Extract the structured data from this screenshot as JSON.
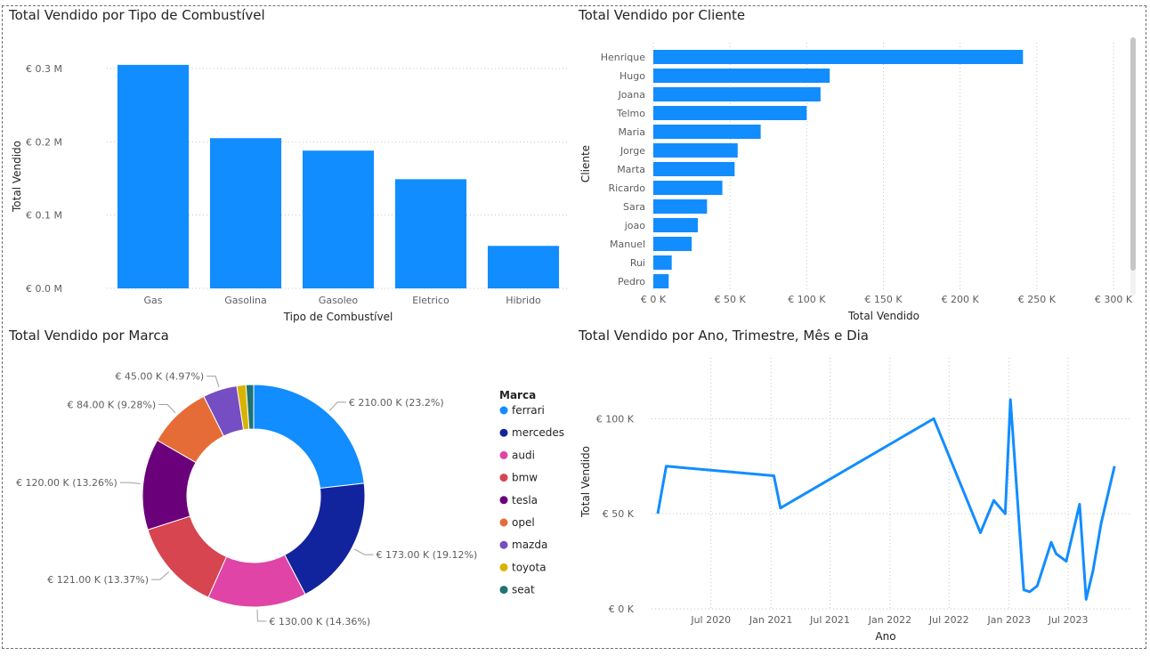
{
  "chart_data": [
    {
      "type": "bar",
      "title": "Total Vendido por Tipo de Combustível",
      "xlabel": "Tipo de Combustível",
      "ylabel": "Total Vendido",
      "categories": [
        "Gas",
        "Gasolina",
        "Gasoleo",
        "Eletrico",
        "Hibrido"
      ],
      "values": [
        305000,
        205000,
        188000,
        149000,
        58000
      ],
      "ylim": [
        0,
        300000
      ],
      "yticks": [
        0,
        100000,
        200000,
        300000
      ],
      "ytick_labels": [
        "€ 0.0 M",
        "€ 0.1 M",
        "€ 0.2 M",
        "€ 0.3 M"
      ],
      "grid": true,
      "color": "#118DFF"
    },
    {
      "type": "bar",
      "orientation": "horizontal",
      "title": "Total Vendido por Cliente",
      "xlabel": "Total Vendido",
      "ylabel": "Cliente",
      "categories": [
        "Henrique",
        "Hugo",
        "Joana",
        "Telmo",
        "Maria",
        "Jorge",
        "Marta",
        "Ricardo",
        "Sara",
        "joao",
        "Manuel",
        "Rui",
        "Pedro"
      ],
      "values": [
        241000,
        115000,
        109000,
        100000,
        70000,
        55000,
        53000,
        45000,
        35000,
        29000,
        25000,
        12000,
        10000
      ],
      "xlim": [
        0,
        300000
      ],
      "xticks": [
        0,
        50000,
        100000,
        150000,
        200000,
        250000,
        300000
      ],
      "xtick_labels": [
        "€ 0 K",
        "€ 50 K",
        "€ 100 K",
        "€ 150 K",
        "€ 200 K",
        "€ 250 K",
        "€ 300 K"
      ],
      "grid": true,
      "color": "#118DFF"
    },
    {
      "type": "pie",
      "subtype": "donut",
      "title": "Total Vendido por Marca",
      "legend_title": "Marca",
      "legend_position": "right",
      "slices": [
        {
          "name": "ferrari",
          "value": 210000,
          "label": "€ 210.00 K (23.2%)",
          "color": "#118DFF"
        },
        {
          "name": "mercedes",
          "value": 173000,
          "label": "€ 173.00 K (19.12%)",
          "color": "#12239E"
        },
        {
          "name": "audi",
          "value": 130000,
          "label": "€ 130.00 K (14.36%)",
          "color": "#E044A7"
        },
        {
          "name": "bmw",
          "value": 121000,
          "label": "€ 121.00 K (13.37%)",
          "color": "#D64550"
        },
        {
          "name": "tesla",
          "value": 120000,
          "label": "€ 120.00 K (13.26%)",
          "color": "#6B007B"
        },
        {
          "name": "opel",
          "value": 84000,
          "label": "€ 84.00 K (9.28%)",
          "color": "#E66C37"
        },
        {
          "name": "mazda",
          "value": 45000,
          "label": "€ 45.00 K (4.97%)",
          "color": "#744EC2"
        },
        {
          "name": "toyota",
          "value": 12000,
          "label": "",
          "color": "#D9B300"
        },
        {
          "name": "seat",
          "value": 10000,
          "label": "",
          "color": "#1E7373"
        }
      ]
    },
    {
      "type": "line",
      "title": "Total Vendido por Ano, Trimestre, Mês e Dia",
      "xlabel": "Ano",
      "ylabel": "Total Vendido",
      "x_domain": [
        "2020-01-01",
        "2024-01-05"
      ],
      "x": [
        "2020-01-20",
        "2020-02-15",
        "2021-01-10",
        "2021-01-30",
        "2022-05-15",
        "2022-10-05",
        "2022-11-15",
        "2022-12-20",
        "2023-01-05",
        "2023-02-15",
        "2023-03-05",
        "2023-03-28",
        "2023-05-10",
        "2023-05-25",
        "2023-06-25",
        "2023-08-05",
        "2023-08-25",
        "2023-09-15",
        "2023-10-10",
        "2023-11-20"
      ],
      "y": [
        50000,
        75000,
        70000,
        53000,
        100000,
        40000,
        57000,
        50000,
        110000,
        10000,
        9000,
        12000,
        35000,
        29000,
        25000,
        55000,
        5000,
        20000,
        45000,
        75000
      ],
      "ylim": [
        0,
        110000
      ],
      "yticks": [
        0,
        50000,
        100000
      ],
      "ytick_labels": [
        "€ 0 K",
        "€ 50 K",
        "€ 100 K"
      ],
      "xtick_labels": [
        "Jul 2020",
        "Jan 2021",
        "Jul 2021",
        "Jan 2022",
        "Jul 2022",
        "Jan 2023",
        "Jul 2023"
      ],
      "xtick_dates": [
        "2020-07-01",
        "2021-01-01",
        "2021-07-01",
        "2022-01-01",
        "2022-07-01",
        "2023-01-01",
        "2023-07-01"
      ],
      "grid": true,
      "color": "#118DFF"
    }
  ]
}
